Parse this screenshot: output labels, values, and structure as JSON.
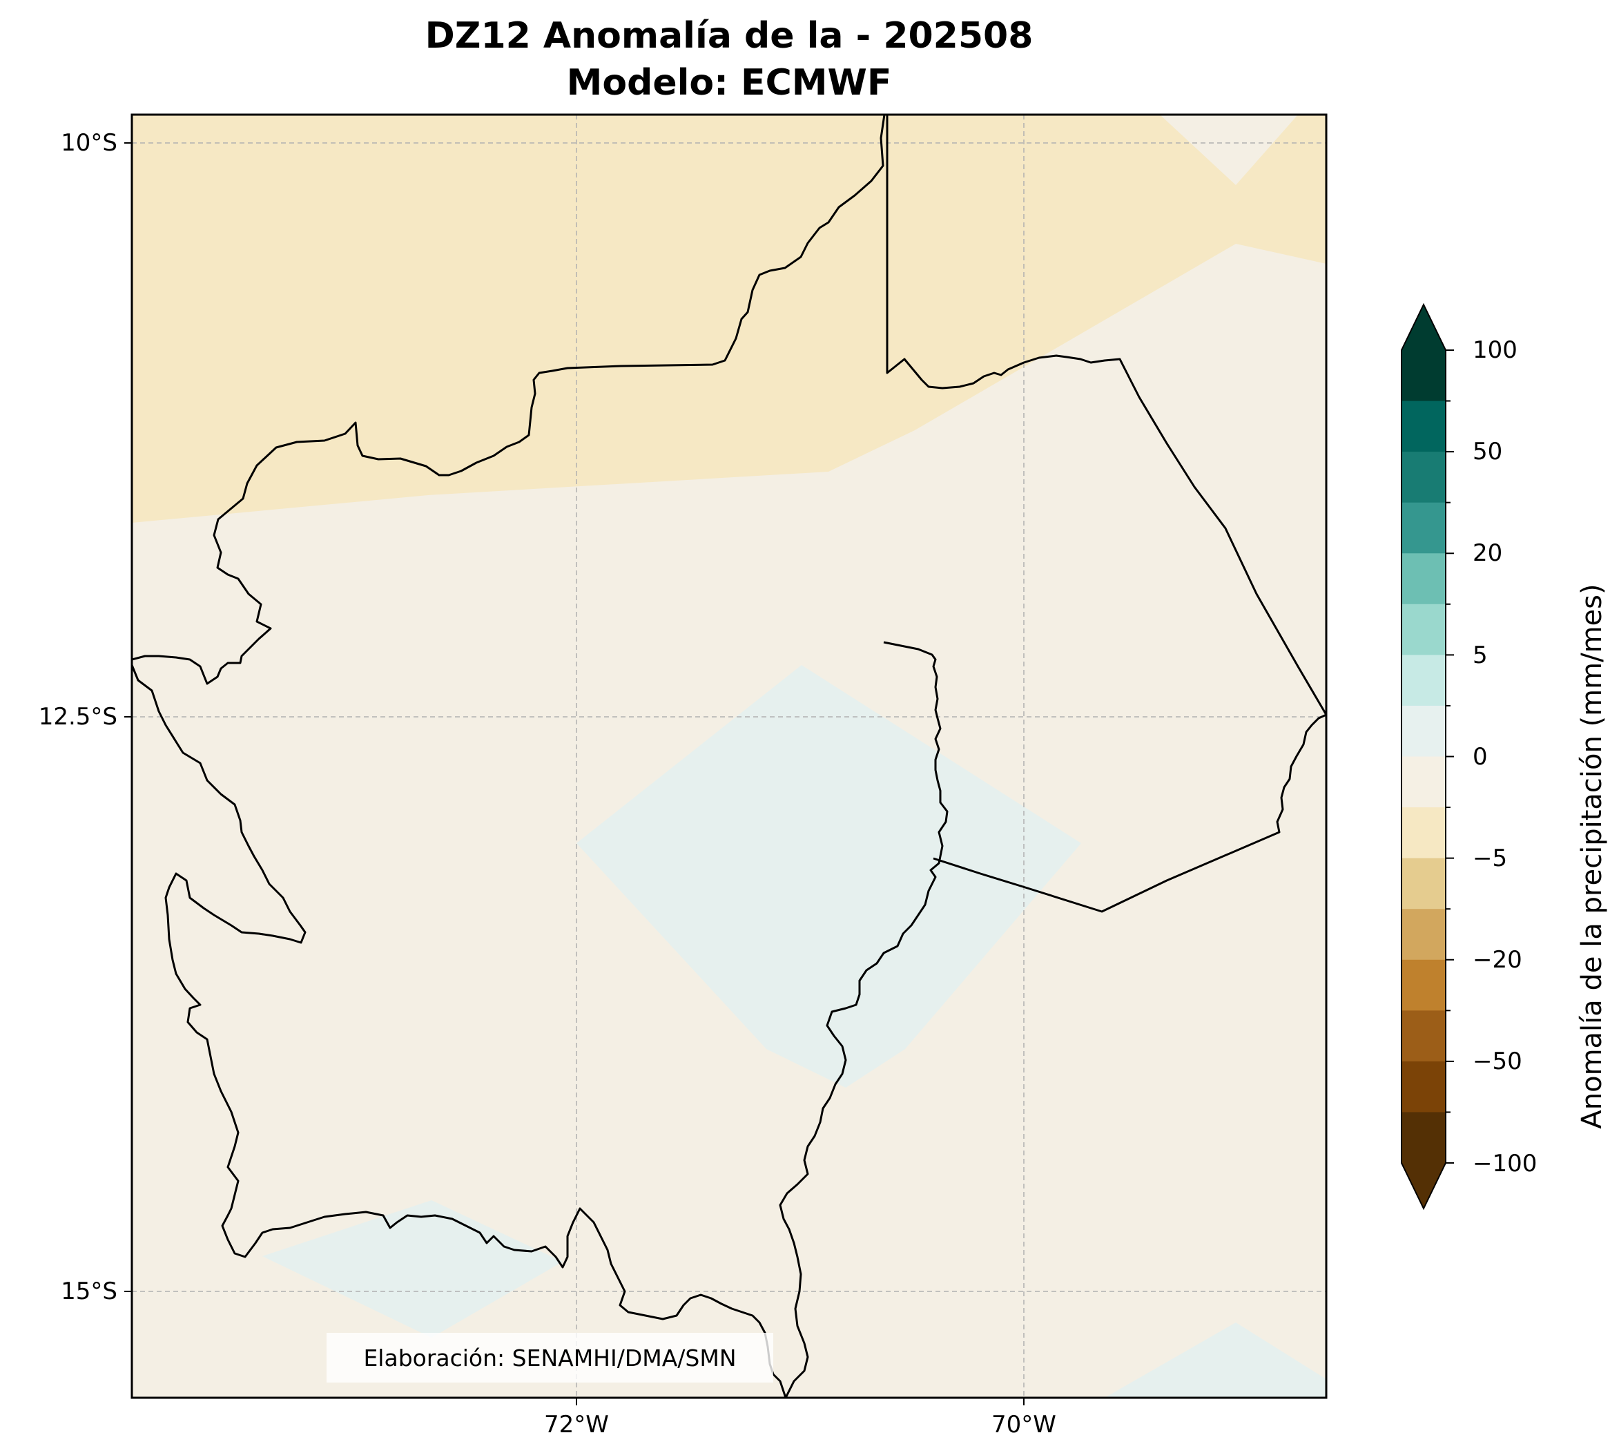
{
  "title": {
    "line1": "DZ12 Anomalía de la - 202508",
    "line2": "Modelo: ECMWF"
  },
  "credit": "Elaboración: SENAMHI/DMA/SMN",
  "map": {
    "lat_ticks": [
      {
        "label": "10°S",
        "lat": -10.0
      },
      {
        "label": "12.5°S",
        "lat": -12.5
      },
      {
        "label": "15°S",
        "lat": -15.0
      }
    ],
    "lon_ticks": [
      {
        "label": "72°W",
        "lon": -72.0
      },
      {
        "label": "70°W",
        "lon": -70.0
      }
    ],
    "extent": {
      "lon_min": -74.0,
      "lon_max": -68.65,
      "lat_min": -15.46,
      "lat_max": -9.88
    },
    "gridlines": true,
    "background_anomaly_class": "0 to -2.5 (light beige)",
    "colors": {
      "frame": "#000000",
      "gridline": "#b0b0b0",
      "boundary": "#000000"
    }
  },
  "colorbar": {
    "title": "Anomalía de la precipitación (mm/mes)",
    "tick_labels": [
      "100",
      "50",
      "20",
      "5",
      "0",
      "−5",
      "−20",
      "−50",
      "−100"
    ],
    "bands_top_to_bottom": [
      "#003c30",
      "#01665e",
      "#187c73",
      "#35978f",
      "#6dbfb3",
      "#9ad8cd",
      "#c7eae5",
      "#e7f1ef",
      "#f5f0e4",
      "#f6e8c3",
      "#e5cc8f",
      "#d2a75e",
      "#bf812d",
      "#9c5e18",
      "#7b4307",
      "#543005"
    ],
    "extend_top_color": "#003c30",
    "extend_bottom_color": "#543005"
  },
  "fill_colors": {
    "ocean_bg": "#f4efe4",
    "dry_band": "#f6e8c4",
    "wet_patch": "#e6f0ee"
  }
}
